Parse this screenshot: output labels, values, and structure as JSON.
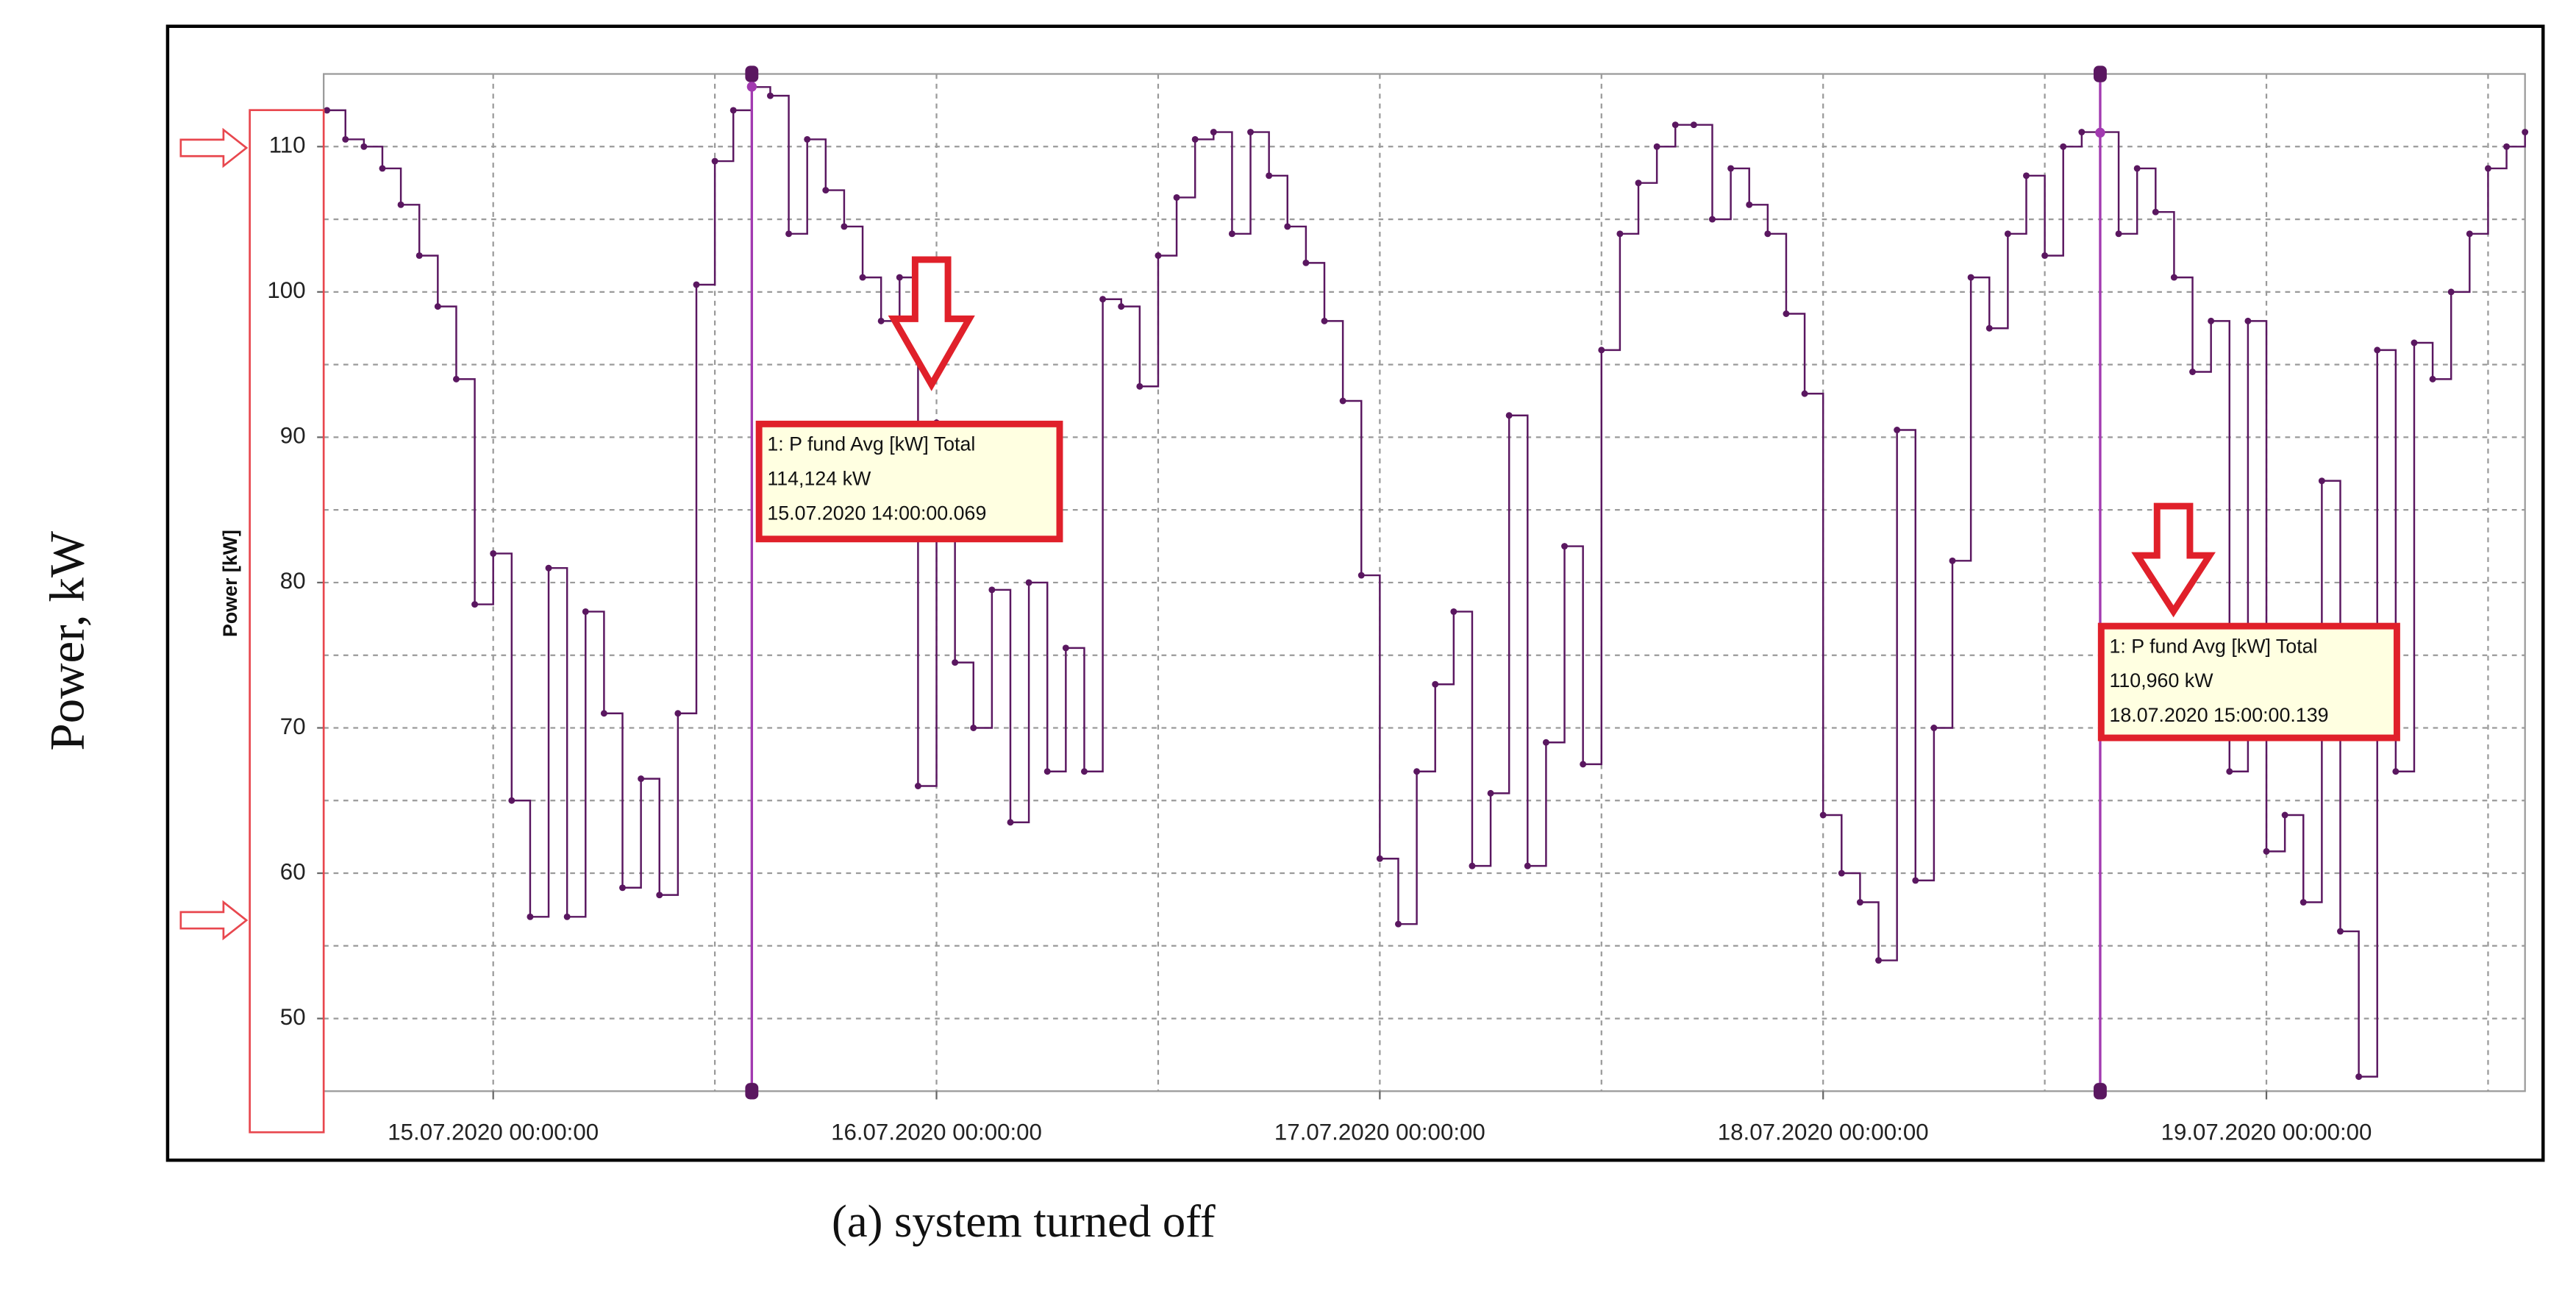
{
  "chart_data": {
    "type": "line",
    "outer_ylabel": "Power, kW",
    "ylabel": "Power [kW]",
    "caption": "(a) system turned off",
    "ylim": [
      45,
      115
    ],
    "yticks": [
      50,
      60,
      70,
      80,
      90,
      100,
      110
    ],
    "xlim": [
      "14.07.2020 15:00:00",
      "19.07.2020 14:00:00"
    ],
    "xticks": [
      "15.07.2020 00:00:00",
      "16.07.2020 00:00:00",
      "17.07.2020 00:00:00",
      "18.07.2020 00:00:00",
      "19.07.2020 00:00:00"
    ],
    "grid": true,
    "step": true,
    "x": [
      "14.07.2020 15:00:00",
      "14.07.2020 16:00:00",
      "14.07.2020 17:00:00",
      "14.07.2020 18:00:00",
      "14.07.2020 19:00:00",
      "14.07.2020 20:00:00",
      "14.07.2020 21:00:00",
      "14.07.2020 22:00:00",
      "14.07.2020 23:00:00",
      "15.07.2020 00:00:00",
      "15.07.2020 01:00:00",
      "15.07.2020 02:00:00",
      "15.07.2020 03:00:00",
      "15.07.2020 04:00:00",
      "15.07.2020 05:00:00",
      "15.07.2020 06:00:00",
      "15.07.2020 07:00:00",
      "15.07.2020 08:00:00",
      "15.07.2020 09:00:00",
      "15.07.2020 10:00:00",
      "15.07.2020 11:00:00",
      "15.07.2020 12:00:00",
      "15.07.2020 13:00:00",
      "15.07.2020 14:00:00",
      "15.07.2020 15:00:00",
      "15.07.2020 16:00:00",
      "15.07.2020 17:00:00",
      "15.07.2020 18:00:00",
      "15.07.2020 19:00:00",
      "15.07.2020 20:00:00",
      "15.07.2020 21:00:00",
      "15.07.2020 22:00:00",
      "15.07.2020 23:00:00",
      "16.07.2020 00:00:00",
      "16.07.2020 01:00:00",
      "16.07.2020 02:00:00",
      "16.07.2020 03:00:00",
      "16.07.2020 04:00:00",
      "16.07.2020 05:00:00",
      "16.07.2020 06:00:00",
      "16.07.2020 07:00:00",
      "16.07.2020 08:00:00",
      "16.07.2020 09:00:00",
      "16.07.2020 10:00:00",
      "16.07.2020 11:00:00",
      "16.07.2020 12:00:00",
      "16.07.2020 13:00:00",
      "16.07.2020 14:00:00",
      "16.07.2020 15:00:00",
      "16.07.2020 16:00:00",
      "16.07.2020 17:00:00",
      "16.07.2020 18:00:00",
      "16.07.2020 19:00:00",
      "16.07.2020 20:00:00",
      "16.07.2020 21:00:00",
      "16.07.2020 22:00:00",
      "16.07.2020 23:00:00",
      "17.07.2020 00:00:00",
      "17.07.2020 01:00:00",
      "17.07.2020 02:00:00",
      "17.07.2020 03:00:00",
      "17.07.2020 04:00:00",
      "17.07.2020 05:00:00",
      "17.07.2020 06:00:00",
      "17.07.2020 07:00:00",
      "17.07.2020 08:00:00",
      "17.07.2020 09:00:00",
      "17.07.2020 10:00:00",
      "17.07.2020 11:00:00",
      "17.07.2020 12:00:00",
      "17.07.2020 13:00:00",
      "17.07.2020 14:00:00",
      "17.07.2020 15:00:00",
      "17.07.2020 16:00:00",
      "17.07.2020 17:00:00",
      "17.07.2020 18:00:00",
      "17.07.2020 19:00:00",
      "17.07.2020 20:00:00",
      "17.07.2020 21:00:00",
      "17.07.2020 22:00:00",
      "17.07.2020 23:00:00",
      "18.07.2020 00:00:00",
      "18.07.2020 01:00:00",
      "18.07.2020 02:00:00",
      "18.07.2020 03:00:00",
      "18.07.2020 04:00:00",
      "18.07.2020 05:00:00",
      "18.07.2020 06:00:00",
      "18.07.2020 07:00:00",
      "18.07.2020 08:00:00",
      "18.07.2020 09:00:00",
      "18.07.2020 10:00:00",
      "18.07.2020 11:00:00",
      "18.07.2020 12:00:00",
      "18.07.2020 13:00:00",
      "18.07.2020 14:00:00",
      "18.07.2020 15:00:00",
      "18.07.2020 16:00:00",
      "18.07.2020 17:00:00",
      "18.07.2020 18:00:00",
      "18.07.2020 19:00:00",
      "18.07.2020 20:00:00",
      "18.07.2020 21:00:00",
      "18.07.2020 22:00:00",
      "18.07.2020 23:00:00",
      "19.07.2020 00:00:00",
      "19.07.2020 01:00:00",
      "19.07.2020 02:00:00",
      "19.07.2020 03:00:00",
      "19.07.2020 04:00:00",
      "19.07.2020 05:00:00",
      "19.07.2020 06:00:00",
      "19.07.2020 07:00:00",
      "19.07.2020 08:00:00",
      "19.07.2020 09:00:00",
      "19.07.2020 10:00:00",
      "19.07.2020 11:00:00",
      "19.07.2020 12:00:00",
      "19.07.2020 13:00:00",
      "19.07.2020 14:00:00"
    ],
    "series": [
      {
        "color": "#5a1760",
        "values": [
          112.5,
          110.5,
          110,
          108.5,
          106,
          102.5,
          99,
          94,
          78.5,
          82,
          65,
          57,
          81,
          57,
          78,
          71,
          59,
          66.5,
          58.5,
          71,
          100.5,
          109,
          112.5,
          114.1,
          113.5,
          104,
          110.5,
          107,
          104.5,
          101,
          98,
          101,
          66,
          91,
          74.5,
          70,
          79.5,
          63.5,
          80,
          67,
          75.5,
          67,
          99.5,
          99,
          93.5,
          102.5,
          106.5,
          110.5,
          111,
          104,
          111,
          108,
          104.5,
          102,
          98,
          92.5,
          80.5,
          61,
          56.5,
          67,
          73,
          78,
          60.5,
          65.5,
          91.5,
          60.5,
          69,
          82.5,
          67.5,
          96,
          104,
          107.5,
          110,
          111.5,
          111.5,
          105,
          108.5,
          106,
          104,
          98.5,
          93,
          64,
          60,
          58,
          54,
          90.5,
          59.5,
          70,
          81.5,
          101,
          97.5,
          104,
          108,
          102.5,
          110,
          111,
          111,
          104,
          108.5,
          105.5,
          101,
          94.5,
          98,
          67,
          98,
          61.5,
          64,
          58,
          87,
          56,
          46,
          96,
          67,
          96.5,
          94,
          100,
          104,
          108.5,
          110,
          111
        ]
      }
    ],
    "cursor_color": "#a23ab0",
    "tooltips": [
      {
        "series_label": "1: P fund Avg [kW] Total",
        "value": 114.124,
        "value_label": "114,124 kW",
        "time": "15.07.2020 14:00:00.069"
      },
      {
        "series_label": "1: P fund Avg [kW] Total",
        "value": 110.96,
        "value_label": "110,960 kW",
        "time": "18.07.2020 15:00:00.139"
      }
    ]
  }
}
